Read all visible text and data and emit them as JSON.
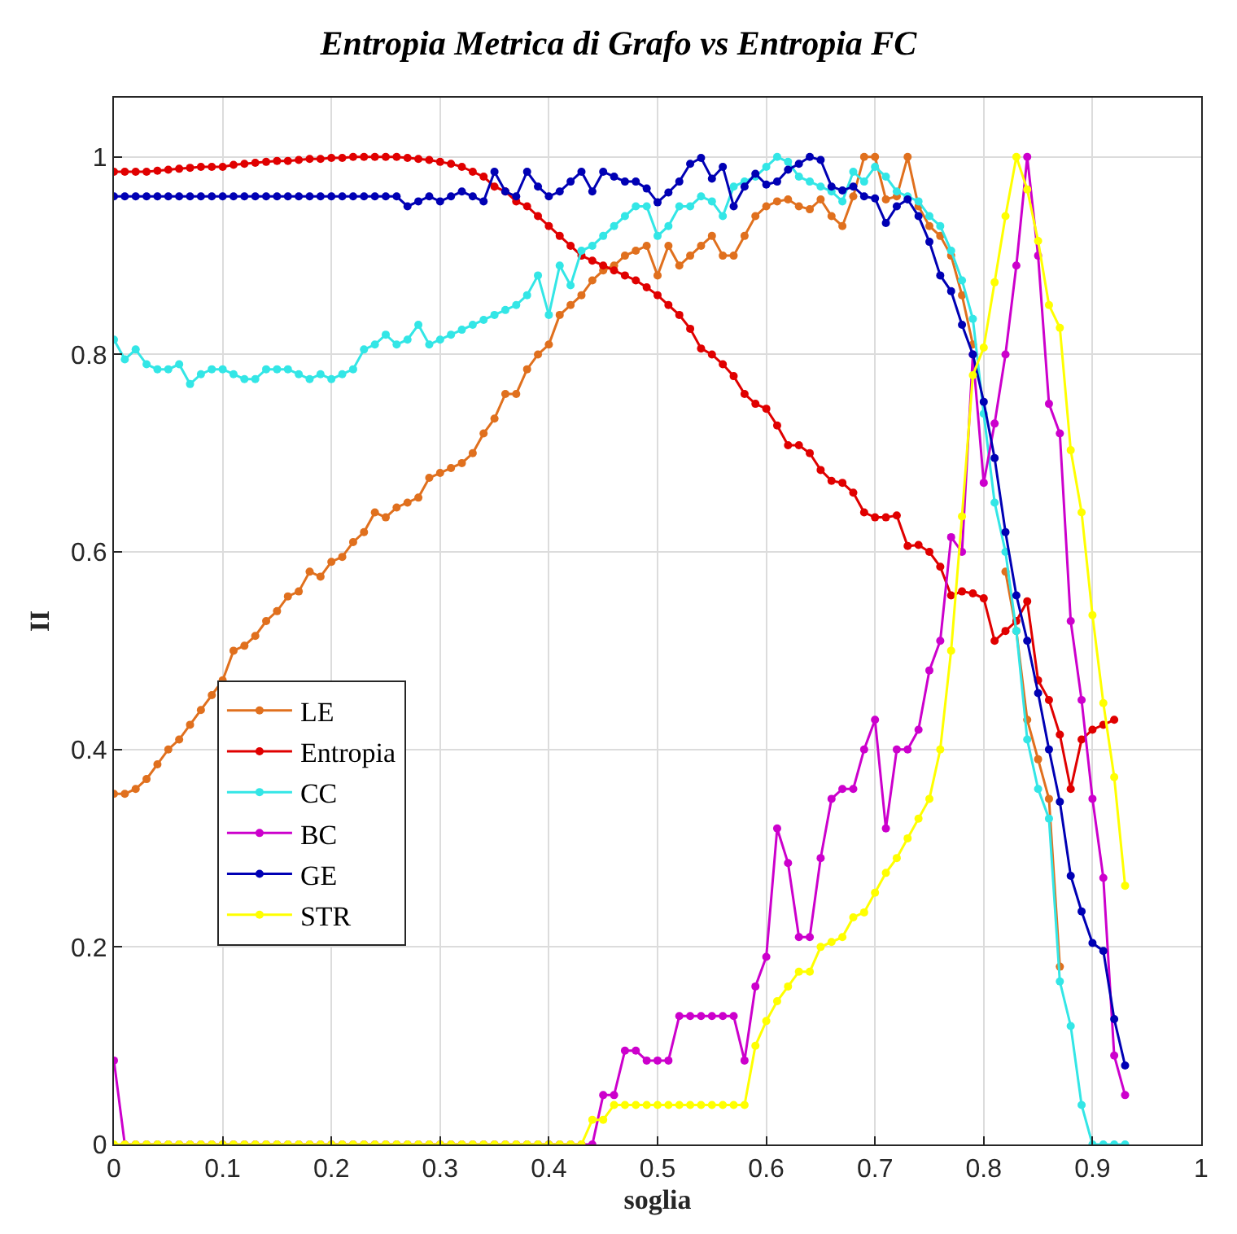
{
  "chart_data": {
    "type": "line",
    "title": "Entropia Metrica di Grafo vs Entropia FC",
    "xlabel": "soglia",
    "ylabel": "II",
    "x": [
      0,
      0.01,
      0.02,
      0.03,
      0.04,
      0.05,
      0.06,
      0.07,
      0.08,
      0.09,
      0.1,
      0.11,
      0.12,
      0.13,
      0.14,
      0.15,
      0.16,
      0.17,
      0.18,
      0.19,
      0.2,
      0.21,
      0.22,
      0.23,
      0.24,
      0.25,
      0.26,
      0.27,
      0.28,
      0.29,
      0.3,
      0.31,
      0.32,
      0.33,
      0.34,
      0.35,
      0.36,
      0.37,
      0.38,
      0.39,
      0.4,
      0.41,
      0.42,
      0.43,
      0.44,
      0.45,
      0.46,
      0.47,
      0.48,
      0.49,
      0.5,
      0.51,
      0.52,
      0.53,
      0.54,
      0.55,
      0.56,
      0.57,
      0.58,
      0.59,
      0.6,
      0.61,
      0.62,
      0.63,
      0.64,
      0.65,
      0.66,
      0.67,
      0.68,
      0.69,
      0.7,
      0.71,
      0.72,
      0.73,
      0.74,
      0.75,
      0.76,
      0.77,
      0.78,
      0.79,
      0.8,
      0.81,
      0.82,
      0.83,
      0.84,
      0.85,
      0.86,
      0.87,
      0.88,
      0.89,
      0.9,
      0.91,
      0.92,
      0.93
    ],
    "series": [
      {
        "name": "LE",
        "color": "#e0701e",
        "values": [
          0.355,
          0.355,
          0.36,
          0.37,
          0.385,
          0.4,
          0.41,
          0.425,
          0.44,
          0.455,
          0.47,
          0.5,
          0.505,
          0.515,
          0.53,
          0.54,
          0.555,
          0.56,
          0.58,
          0.575,
          0.59,
          0.595,
          0.61,
          0.62,
          0.64,
          0.635,
          0.645,
          0.65,
          0.655,
          0.675,
          0.68,
          0.685,
          0.69,
          0.7,
          0.72,
          0.735,
          0.76,
          0.76,
          0.785,
          0.8,
          0.81,
          0.84,
          0.85,
          0.86,
          0.875,
          0.885,
          0.89,
          0.9,
          0.905,
          0.91,
          0.88,
          0.91,
          0.89,
          0.9,
          0.91,
          0.92,
          0.9,
          0.9,
          0.92,
          0.94,
          0.95,
          0.955,
          0.957,
          0.95,
          0.947,
          0.957,
          0.94,
          0.93,
          0.96,
          1.0,
          1.0,
          0.957,
          0.96,
          1.0,
          0.95,
          0.93,
          0.92,
          0.9,
          0.86,
          0.81,
          null,
          null,
          0.58,
          0.52,
          0.43,
          0.39,
          0.35,
          0.18,
          null,
          null,
          null,
          null,
          null,
          null
        ]
      },
      {
        "name": "Entropia",
        "color": "#e00000",
        "values": [
          0.985,
          0.985,
          0.985,
          0.985,
          0.986,
          0.987,
          0.988,
          0.989,
          0.99,
          0.99,
          0.99,
          0.992,
          0.993,
          0.994,
          0.995,
          0.996,
          0.996,
          0.997,
          0.998,
          0.998,
          0.999,
          0.999,
          1.0,
          1.0,
          1.0,
          1.0,
          1.0,
          0.999,
          0.998,
          0.997,
          0.995,
          0.993,
          0.99,
          0.985,
          0.98,
          0.97,
          0.965,
          0.955,
          0.95,
          0.94,
          0.93,
          0.92,
          0.91,
          0.9,
          0.895,
          0.89,
          0.885,
          0.88,
          0.875,
          0.868,
          0.86,
          0.85,
          0.84,
          0.826,
          0.806,
          0.8,
          0.79,
          0.778,
          0.76,
          0.75,
          0.745,
          0.728,
          0.708,
          0.708,
          0.7,
          0.683,
          0.672,
          0.67,
          0.66,
          0.64,
          0.635,
          0.635,
          0.637,
          0.606,
          0.607,
          0.6,
          0.585,
          0.556,
          0.56,
          0.558,
          0.553,
          0.51,
          0.52,
          0.53,
          0.55,
          0.47,
          0.45,
          0.415,
          0.36,
          0.41,
          0.42,
          0.425,
          0.43,
          null
        ]
      },
      {
        "name": "CC",
        "color": "#33e6e6",
        "values": [
          0.815,
          0.795,
          0.805,
          0.79,
          0.785,
          0.785,
          0.79,
          0.77,
          0.78,
          0.785,
          0.785,
          0.78,
          0.775,
          0.775,
          0.785,
          0.785,
          0.785,
          0.78,
          0.775,
          0.78,
          0.775,
          0.78,
          0.785,
          0.805,
          0.81,
          0.82,
          0.81,
          0.815,
          0.83,
          0.81,
          0.815,
          0.82,
          0.825,
          0.83,
          0.835,
          0.84,
          0.845,
          0.85,
          0.86,
          0.88,
          0.84,
          0.89,
          0.87,
          0.905,
          0.91,
          0.92,
          0.93,
          0.94,
          0.95,
          0.95,
          0.92,
          0.93,
          0.95,
          0.95,
          0.96,
          0.955,
          0.94,
          0.97,
          0.975,
          0.98,
          0.99,
          1.0,
          0.995,
          0.98,
          0.975,
          0.97,
          0.965,
          0.955,
          0.985,
          0.975,
          0.99,
          0.98,
          0.965,
          0.96,
          0.955,
          0.94,
          0.93,
          0.905,
          0.875,
          0.836,
          0.74,
          0.65,
          0.6,
          0.52,
          0.41,
          0.36,
          0.33,
          0.165,
          0.12,
          0.04,
          0,
          0,
          0,
          0
        ]
      },
      {
        "name": "BC",
        "color": "#cc00cc",
        "values": [
          0.085,
          0,
          0,
          0,
          0,
          0,
          0,
          0,
          0,
          0,
          0,
          0,
          0,
          0,
          0,
          0,
          0,
          0,
          0,
          0,
          0,
          0,
          0,
          0,
          0,
          0,
          0,
          0,
          0,
          0,
          0,
          0,
          0,
          0,
          0,
          0,
          0,
          0,
          0,
          0,
          0,
          0,
          0,
          0,
          0,
          0.05,
          0.05,
          0.095,
          0.095,
          0.085,
          0.085,
          0.085,
          0.13,
          0.13,
          0.13,
          0.13,
          0.13,
          0.13,
          0.085,
          0.16,
          0.19,
          0.32,
          0.285,
          0.21,
          0.21,
          0.29,
          0.35,
          0.36,
          0.36,
          0.4,
          0.43,
          0.32,
          0.4,
          0.4,
          0.42,
          0.48,
          0.51,
          0.615,
          0.6,
          0.8,
          0.67,
          0.73,
          0.8,
          0.89,
          1.0,
          0.9,
          0.75,
          0.72,
          0.53,
          0.45,
          0.35,
          0.27,
          0.09,
          0.05
        ]
      },
      {
        "name": "GE",
        "color": "#0000b4",
        "values": [
          0.96,
          0.96,
          0.96,
          0.96,
          0.96,
          0.96,
          0.96,
          0.96,
          0.96,
          0.96,
          0.96,
          0.96,
          0.96,
          0.96,
          0.96,
          0.96,
          0.96,
          0.96,
          0.96,
          0.96,
          0.96,
          0.96,
          0.96,
          0.96,
          0.96,
          0.96,
          0.96,
          0.95,
          0.955,
          0.96,
          0.955,
          0.96,
          0.965,
          0.96,
          0.955,
          0.985,
          0.965,
          0.96,
          0.985,
          0.97,
          0.96,
          0.965,
          0.975,
          0.985,
          0.965,
          0.985,
          0.98,
          0.975,
          0.975,
          0.968,
          0.954,
          0.964,
          0.975,
          0.993,
          0.999,
          0.978,
          0.99,
          0.95,
          0.97,
          0.983,
          0.972,
          0.975,
          0.987,
          0.993,
          1.0,
          0.997,
          0.97,
          0.966,
          0.97,
          0.96,
          0.958,
          0.933,
          0.95,
          0.957,
          0.94,
          0.914,
          0.88,
          0.864,
          0.83,
          0.8,
          0.752,
          0.695,
          0.62,
          0.556,
          0.51,
          0.457,
          0.4,
          0.347,
          0.272,
          0.236,
          0.204,
          0.196,
          0.127,
          0.08
        ]
      },
      {
        "name": "STR",
        "color": "#ffff00",
        "values": [
          0,
          0,
          0,
          0,
          0,
          0,
          0,
          0,
          0,
          0,
          0,
          0,
          0,
          0,
          0,
          0,
          0,
          0,
          0,
          0,
          0,
          0,
          0,
          0,
          0,
          0,
          0,
          0,
          0,
          0,
          0,
          0,
          0,
          0,
          0,
          0,
          0,
          0,
          0,
          0,
          0,
          0,
          0,
          0,
          0.025,
          0.025,
          0.04,
          0.04,
          0.04,
          0.04,
          0.04,
          0.04,
          0.04,
          0.04,
          0.04,
          0.04,
          0.04,
          0.04,
          0.04,
          0.1,
          0.125,
          0.145,
          0.16,
          0.175,
          0.175,
          0.2,
          0.205,
          0.21,
          0.23,
          0.235,
          0.255,
          0.275,
          0.29,
          0.31,
          0.33,
          0.35,
          0.4,
          0.5,
          0.636,
          0.779,
          0.807,
          0.873,
          0.94,
          1.0,
          0.967,
          0.915,
          0.85,
          0.827,
          0.703,
          0.64,
          0.536,
          0.447,
          0.372,
          0.262
        ]
      }
    ],
    "xlim": [
      0,
      1
    ],
    "xticks": [
      0,
      0.1,
      0.2,
      0.3,
      0.4,
      0.5,
      0.6,
      0.7,
      0.8,
      0.9,
      1
    ],
    "ylim": [
      0,
      1.06
    ],
    "yticks": [
      0,
      0.2,
      0.4,
      0.6,
      0.8,
      1
    ],
    "grid": true,
    "legend": "bottom left",
    "marker": "circle",
    "line_style": "solid"
  }
}
